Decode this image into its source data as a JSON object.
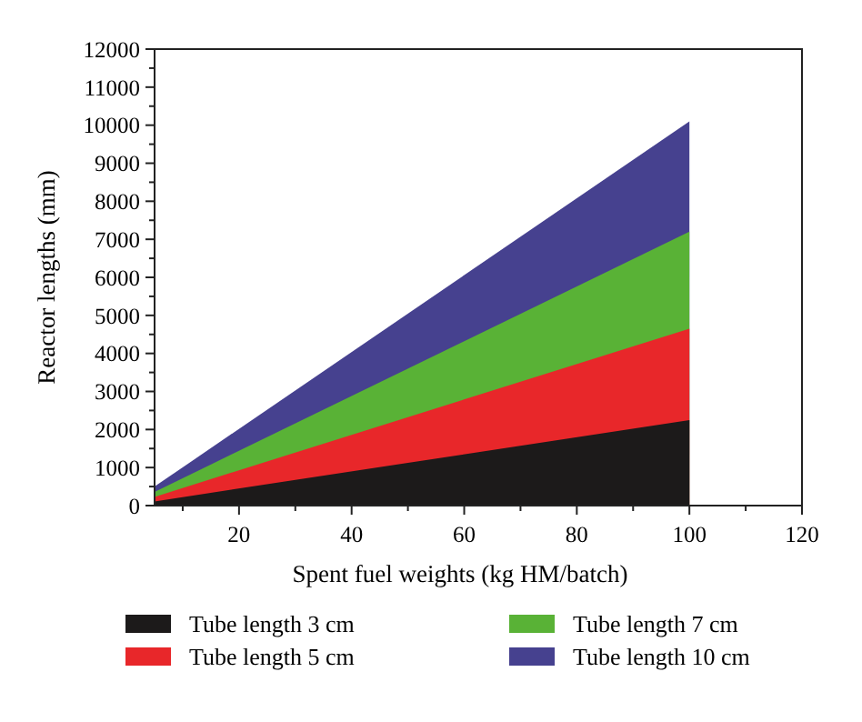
{
  "chart_data": {
    "type": "area",
    "xlabel": "Spent fuel weights (kg HM/batch)",
    "ylabel": "Reactor lengths (mm)",
    "x": [
      5,
      100
    ],
    "series": [
      {
        "name": "Tube length 3 cm",
        "color": "#1c1a1a",
        "values": [
          110,
          2250
        ]
      },
      {
        "name": "Tube length 5 cm",
        "color": "#e8272a",
        "values": [
          230,
          4650
        ]
      },
      {
        "name": "Tube length 7 cm",
        "color": "#59b236",
        "values": [
          360,
          7200
        ]
      },
      {
        "name": "Tube length 10 cm",
        "color": "#46418f",
        "values": [
          500,
          10100
        ]
      }
    ],
    "xlim": [
      5,
      120
    ],
    "xticks": [
      20,
      40,
      60,
      80,
      100,
      120
    ],
    "ylim": [
      0,
      12000
    ],
    "yticks": [
      0,
      1000,
      2000,
      3000,
      4000,
      5000,
      6000,
      7000,
      8000,
      9000,
      10000,
      11000,
      12000
    ],
    "legend": "bottom",
    "grid": false
  }
}
